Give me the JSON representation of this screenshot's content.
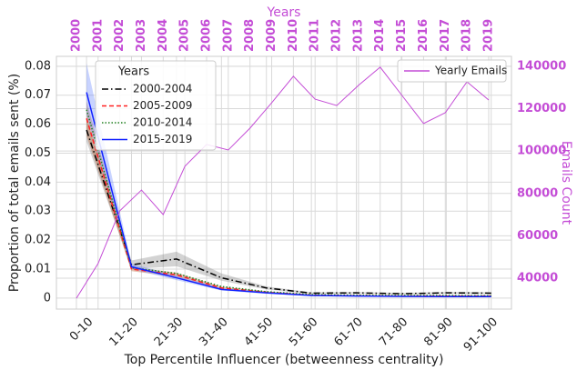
{
  "chart_data": [
    {
      "type": "line",
      "xlabel": "Top Percentile Influencer (betweenness centrality)",
      "ylabel": "Proportion of total emails sent (%)",
      "categories": [
        "0-10",
        "11-20",
        "21-30",
        "31-40",
        "41-50",
        "51-60",
        "61-70",
        "71-80",
        "81-90",
        "91-100"
      ],
      "ylim": [
        -0.0038,
        0.0834
      ],
      "yticks": [
        0,
        0.01,
        0.02,
        0.03,
        0.04,
        0.05,
        0.06,
        0.07,
        0.08
      ],
      "grid": true,
      "legend": "upper left",
      "legend_title": "Years",
      "series": [
        {
          "name": "2000-2004",
          "color": "#000000",
          "dash": "dashdot",
          "band_color": "#808080",
          "values": [
            0.058,
            0.0115,
            0.0135,
            0.007,
            0.0035,
            0.0017,
            0.0018,
            0.0015,
            0.0018,
            0.0017
          ],
          "lower": [
            0.054,
            0.01,
            0.011,
            0.006,
            0.003,
            0.0014,
            0.0015,
            0.0012,
            0.0015,
            0.0014
          ],
          "upper": [
            0.062,
            0.013,
            0.016,
            0.0085,
            0.004,
            0.002,
            0.0021,
            0.0018,
            0.0021,
            0.002
          ]
        },
        {
          "name": "2005-2009",
          "color": "#ff2020",
          "dash": "dashed",
          "band_color": "#b05020",
          "values": [
            0.062,
            0.01,
            0.008,
            0.0035,
            0.002,
            0.001,
            0.0008,
            0.0007,
            0.0007,
            0.0007
          ],
          "lower": [
            0.056,
            0.0093,
            0.0073,
            0.0031,
            0.0017,
            0.0008,
            0.0006,
            0.0005,
            0.0005,
            0.0005
          ],
          "upper": [
            0.068,
            0.0107,
            0.0088,
            0.0039,
            0.0023,
            0.0012,
            0.001,
            0.0009,
            0.0009,
            0.0009
          ]
        },
        {
          "name": "2010-2014",
          "color": "#208020",
          "dash": "dotted",
          "values": [
            0.065,
            0.0105,
            0.0085,
            0.004,
            0.0022,
            0.0012,
            0.001,
            0.0009,
            0.0009,
            0.0008
          ]
        },
        {
          "name": "2015-2019",
          "color": "#1020ff",
          "dash": "solid",
          "band_color": "#6080ff",
          "values": [
            0.071,
            0.0108,
            0.007,
            0.003,
            0.0018,
            0.0009,
            0.0007,
            0.0006,
            0.0005,
            0.0005
          ],
          "lower": [
            0.063,
            0.01,
            0.0062,
            0.0026,
            0.0015,
            0.0007,
            0.0005,
            0.0004,
            0.0004,
            0.0004
          ],
          "upper": [
            0.081,
            0.0118,
            0.0078,
            0.0034,
            0.0021,
            0.0011,
            0.0009,
            0.0008,
            0.0006,
            0.0006
          ]
        }
      ]
    },
    {
      "type": "line",
      "xlabel": "Years",
      "ylabel": "Emails Count",
      "x": [
        2000,
        2001,
        2002,
        2003,
        2004,
        2005,
        2006,
        2007,
        2008,
        2009,
        2010,
        2011,
        2012,
        2013,
        2014,
        2015,
        2016,
        2017,
        2018,
        2019
      ],
      "xlim": [
        1999.08,
        2020.05
      ],
      "xticks": [
        2000,
        2001,
        2002,
        2003,
        2004,
        2005,
        2006,
        2007,
        2008,
        2009,
        2010,
        2011,
        2012,
        2013,
        2014,
        2015,
        2016,
        2017,
        2018,
        2019
      ],
      "y2lim": [
        25400,
        144700
      ],
      "y2ticks": [
        40000,
        60000,
        80000,
        100000,
        120000,
        140000
      ],
      "grid": true,
      "axis_color": "#c44dd6",
      "legend": "upper right",
      "series": [
        {
          "name": "Yearly Emails",
          "color": "#c44dd6",
          "axis": "y2",
          "values": [
            30500,
            46900,
            71800,
            81600,
            70000,
            92800,
            103100,
            100500,
            110800,
            122800,
            135300,
            124500,
            121500,
            131000,
            139600,
            126300,
            113000,
            118100,
            132700,
            124100
          ]
        }
      ]
    }
  ]
}
